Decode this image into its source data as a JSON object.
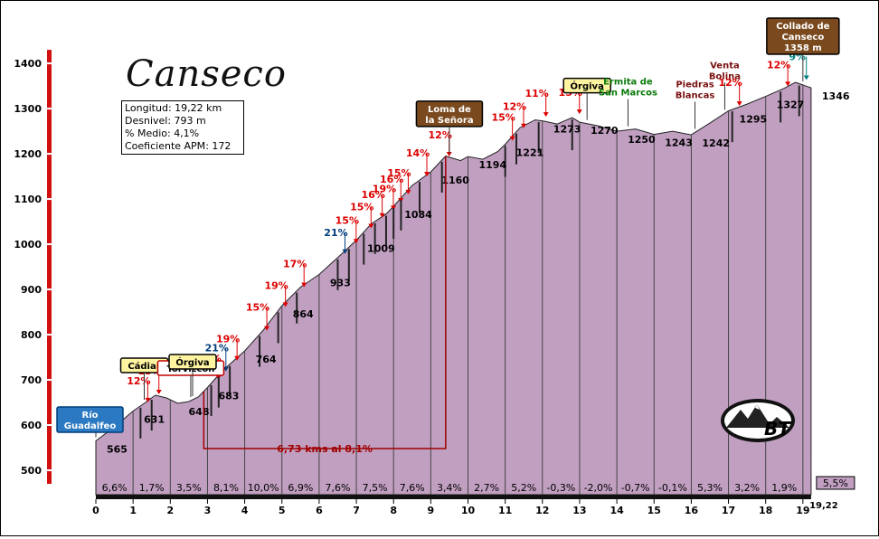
{
  "chart_data": {
    "type": "area",
    "title": "Canseco",
    "stats": [
      {
        "label": "Longitud",
        "value": "19,22 km"
      },
      {
        "label": "Desnivel",
        "value": "793 m"
      },
      {
        "label": "% Medio",
        "value": "4,1%"
      },
      {
        "label": "Coeficiente APM",
        "value": "172"
      }
    ],
    "xlim": [
      0,
      19.22
    ],
    "ylim": [
      480,
      1420
    ],
    "x_ticks": [
      "0",
      "1",
      "2",
      "3",
      "4",
      "5",
      "6",
      "7",
      "8",
      "9",
      "10",
      "11",
      "12",
      "13",
      "14",
      "15",
      "16",
      "17",
      "18",
      "19"
    ],
    "x_end_label": "19,22",
    "y_ticks": [
      "500",
      "600",
      "700",
      "800",
      "900",
      "1000",
      "1100",
      "1200",
      "1300",
      "1400"
    ],
    "profile": [
      {
        "x": 0,
        "y": 565
      },
      {
        "x": 0.5,
        "y": 596
      },
      {
        "x": 1,
        "y": 631
      },
      {
        "x": 1.3,
        "y": 648
      },
      {
        "x": 1.6,
        "y": 666
      },
      {
        "x": 1.9,
        "y": 660
      },
      {
        "x": 2.2,
        "y": 648
      },
      {
        "x": 2.5,
        "y": 652
      },
      {
        "x": 2.75,
        "y": 662
      },
      {
        "x": 3.0,
        "y": 683
      },
      {
        "x": 3.4,
        "y": 720
      },
      {
        "x": 4,
        "y": 764
      },
      {
        "x": 4.5,
        "y": 810
      },
      {
        "x": 5,
        "y": 864
      },
      {
        "x": 5.5,
        "y": 905
      },
      {
        "x": 6,
        "y": 933
      },
      {
        "x": 6.6,
        "y": 978
      },
      {
        "x": 7,
        "y": 1009
      },
      {
        "x": 7.4,
        "y": 1045
      },
      {
        "x": 7.8,
        "y": 1067
      },
      {
        "x": 8,
        "y": 1084
      },
      {
        "x": 8.5,
        "y": 1130
      },
      {
        "x": 9,
        "y": 1160
      },
      {
        "x": 9.4,
        "y": 1195
      },
      {
        "x": 9.8,
        "y": 1185
      },
      {
        "x": 10,
        "y": 1194
      },
      {
        "x": 10.4,
        "y": 1188
      },
      {
        "x": 10.8,
        "y": 1205
      },
      {
        "x": 11,
        "y": 1221
      },
      {
        "x": 11.4,
        "y": 1258
      },
      {
        "x": 11.8,
        "y": 1275
      },
      {
        "x": 12,
        "y": 1273
      },
      {
        "x": 12.4,
        "y": 1266
      },
      {
        "x": 12.8,
        "y": 1280
      },
      {
        "x": 13,
        "y": 1270
      },
      {
        "x": 13.5,
        "y": 1262
      },
      {
        "x": 14,
        "y": 1250
      },
      {
        "x": 14.5,
        "y": 1255
      },
      {
        "x": 15,
        "y": 1243
      },
      {
        "x": 15.5,
        "y": 1250
      },
      {
        "x": 16,
        "y": 1242
      },
      {
        "x": 16.5,
        "y": 1268
      },
      {
        "x": 17,
        "y": 1295
      },
      {
        "x": 17.5,
        "y": 1310
      },
      {
        "x": 18,
        "y": 1327
      },
      {
        "x": 18.5,
        "y": 1345
      },
      {
        "x": 18.8,
        "y": 1358
      },
      {
        "x": 19.22,
        "y": 1346
      }
    ],
    "point_labels": [
      {
        "x": 0,
        "y": 565,
        "text": "565"
      },
      {
        "x": 1,
        "y": 631,
        "text": "631"
      },
      {
        "x": 2.2,
        "y": 648,
        "text": "648"
      },
      {
        "x": 3,
        "y": 683,
        "text": "683"
      },
      {
        "x": 4,
        "y": 764,
        "text": "764"
      },
      {
        "x": 5,
        "y": 864,
        "text": "864"
      },
      {
        "x": 6,
        "y": 933,
        "text": "933"
      },
      {
        "x": 7,
        "y": 1009,
        "text": "1009"
      },
      {
        "x": 8,
        "y": 1084,
        "text": "1084"
      },
      {
        "x": 9,
        "y": 1160,
        "text": "1160"
      },
      {
        "x": 10,
        "y": 1194,
        "text": "1194"
      },
      {
        "x": 11,
        "y": 1221,
        "text": "1221"
      },
      {
        "x": 12,
        "y": 1273,
        "text": "1273"
      },
      {
        "x": 13,
        "y": 1270,
        "text": "1270"
      },
      {
        "x": 14,
        "y": 1250,
        "text": "1250"
      },
      {
        "x": 15,
        "y": 1243,
        "text": "1243"
      },
      {
        "x": 16,
        "y": 1242,
        "text": "1242"
      },
      {
        "x": 17,
        "y": 1295,
        "text": "1295"
      },
      {
        "x": 18,
        "y": 1327,
        "text": "1327"
      },
      {
        "x": 19.22,
        "y": 1346,
        "text": "1346"
      }
    ],
    "segment_gradients": [
      "6,6%",
      "1,7%",
      "3,5%",
      "8,1%",
      "10,0%",
      "6,9%",
      "7,6%",
      "7,5%",
      "7,6%",
      "3,4%",
      "2,7%",
      "5,2%",
      "-0,3%",
      "-2,0%",
      "-0,7%",
      "-0,1%",
      "5,3%",
      "3,2%",
      "1,9%"
    ],
    "final_gradient": "5,5%",
    "steep_sections": [
      {
        "x": 1.2,
        "text": "12%",
        "color": "#dd0000"
      },
      {
        "x": 1.5,
        "text": "13%",
        "color": "#dd0000"
      },
      {
        "x": 3.1,
        "text": "16%",
        "color": "#dd0000"
      },
      {
        "x": 3.3,
        "text": "21%",
        "color": "#003d7a"
      },
      {
        "x": 3.6,
        "text": "19%",
        "color": "#dd0000"
      },
      {
        "x": 4.4,
        "text": "15%",
        "color": "#dd0000"
      },
      {
        "x": 4.9,
        "text": "19%",
        "color": "#dd0000"
      },
      {
        "x": 5.4,
        "text": "17%",
        "color": "#dd0000"
      },
      {
        "x": 6.5,
        "text": "21%",
        "color": "#003d7a"
      },
      {
        "x": 6.8,
        "text": "15%",
        "color": "#dd0000"
      },
      {
        "x": 7.2,
        "text": "15%",
        "color": "#dd0000"
      },
      {
        "x": 7.5,
        "text": "16%",
        "color": "#dd0000"
      },
      {
        "x": 7.8,
        "text": "19%",
        "color": "#dd0000"
      },
      {
        "x": 8.0,
        "text": "16%",
        "color": "#dd0000"
      },
      {
        "x": 8.2,
        "text": "15%",
        "color": "#dd0000"
      },
      {
        "x": 8.7,
        "text": "14%",
        "color": "#dd0000"
      },
      {
        "x": 9.3,
        "text": "12%",
        "color": "#dd0000"
      },
      {
        "x": 11.0,
        "text": "15%",
        "color": "#dd0000"
      },
      {
        "x": 11.3,
        "text": "12%",
        "color": "#dd0000"
      },
      {
        "x": 11.9,
        "text": "11%",
        "color": "#dd0000"
      },
      {
        "x": 12.8,
        "text": "15%",
        "color": "#dd0000"
      },
      {
        "x": 17.1,
        "text": "12%",
        "color": "#dd0000"
      },
      {
        "x": 18.4,
        "text": "12%",
        "color": "#dd0000"
      },
      {
        "x": 18.9,
        "text": "9%",
        "color": "#008080"
      }
    ],
    "places": [
      {
        "x": 0,
        "text": [
          "Río",
          "Guadalfeo"
        ],
        "style": "blue"
      },
      {
        "x": 1.3,
        "text": [
          "Cádiar"
        ],
        "style": "yellow-left"
      },
      {
        "x": 2.55,
        "text": [
          "Torvizcón"
        ],
        "style": "red-box"
      },
      {
        "x": 2.6,
        "text": [
          "Órgiva"
        ],
        "style": "yellow-right"
      },
      {
        "x": 9.5,
        "text": [
          "Loma de",
          "la Señora"
        ],
        "style": "brown"
      },
      {
        "x": 13.2,
        "text": [
          "Órgiva"
        ],
        "style": "yellow-right"
      },
      {
        "x": 14.3,
        "text": [
          "Ermita de",
          "San Marcos"
        ],
        "style": "green-text"
      },
      {
        "x": 16.1,
        "text": [
          "Piedras",
          "Blancas"
        ],
        "style": "darkred-text"
      },
      {
        "x": 16.9,
        "text": [
          "Venta",
          "Bolina"
        ],
        "style": "darkred-text"
      },
      {
        "x": 19.0,
        "text": [
          "Collado de",
          "Canseco",
          "1358 m"
        ],
        "style": "brown"
      }
    ],
    "bracket": {
      "x1": 2.9,
      "x2": 9.4,
      "text": "6,73 kms al 8,1%"
    },
    "logo_text": "BT",
    "colors": {
      "fill": "#c19fc1",
      "axis_bar": "#d21010",
      "label_red": "#dd0000",
      "label_blue": "#003d7a",
      "brown_box": "#7a4a1e",
      "yellow_box": "#fff5a0",
      "blue_box": "#2a79c2"
    }
  }
}
